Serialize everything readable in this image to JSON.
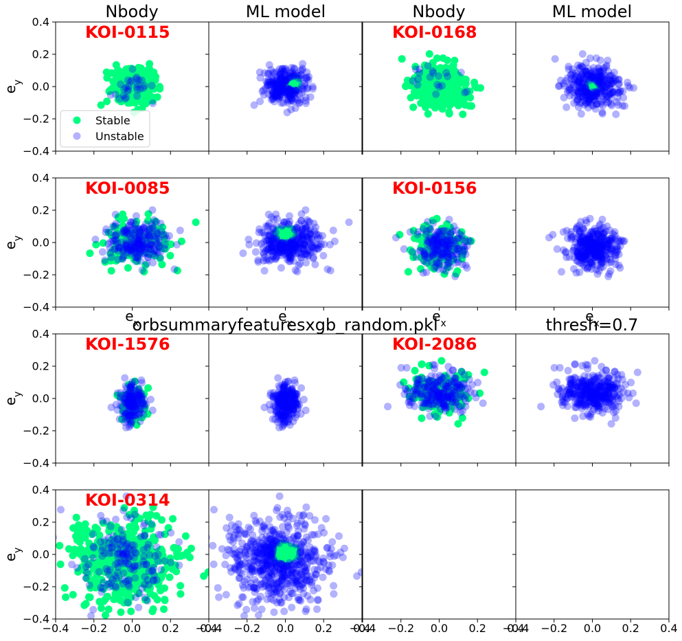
{
  "chart_data": {
    "type": "scatter",
    "xlim": [
      -0.4,
      0.4
    ],
    "ylim": [
      -0.4,
      0.4
    ],
    "xticks": [
      -0.4,
      -0.2,
      0.0,
      0.2,
      0.4
    ],
    "yticks": [
      -0.4,
      -0.2,
      0.0,
      0.2,
      0.4
    ],
    "xtick_labels": [
      "−0.4",
      "−0.2",
      "0.0",
      "0.2",
      "0.4"
    ],
    "ytick_labels": [
      "−0.4",
      "−0.2",
      "0.0",
      "0.2",
      "0.4"
    ],
    "column_titles": [
      "Nbody",
      "ML model",
      "Nbody",
      "ML model"
    ],
    "ylabel_main": "e",
    "ylabel_sub": "y",
    "xlabel_main": "e",
    "xlabel_sub": "x",
    "overlay_left": "orbsummaryfeaturesxgb_random.pkl",
    "overlay_right": "thresh=0.7",
    "legend": {
      "placement": "lower-left",
      "entries": [
        {
          "label": "Stable",
          "color": "#00ff7f"
        },
        {
          "label": "Unstable",
          "color": "#0000ff"
        }
      ]
    },
    "colors": {
      "stable": "#00ff7f",
      "unstable": "#0000ff",
      "label": "#ff0000"
    },
    "systems": [
      {
        "name": "KOI-0115",
        "cx": 0.0,
        "cy": 0.0,
        "sx": 0.055,
        "sy": 0.055,
        "stable_frac": 0.9,
        "ml_core_cx": 0.04,
        "ml_core_cy": 0.02,
        "ml_core_r": 0.04,
        "n": 320
      },
      {
        "name": "KOI-0168",
        "cx": 0.0,
        "cy": 0.0,
        "sx": 0.07,
        "sy": 0.065,
        "stable_frac": 0.95,
        "ml_core_cx": 0.0,
        "ml_core_cy": 0.0,
        "ml_core_r": 0.035,
        "n": 360
      },
      {
        "name": "KOI-0085",
        "cx": 0.02,
        "cy": 0.0,
        "sx": 0.085,
        "sy": 0.07,
        "stable_frac": 0.45,
        "ml_core_cx": 0.0,
        "ml_core_cy": 0.05,
        "ml_core_r": 0.05,
        "n": 380
      },
      {
        "name": "KOI-0156",
        "cx": 0.0,
        "cy": -0.03,
        "sx": 0.07,
        "sy": 0.07,
        "stable_frac": 0.5,
        "ml_core_cx": 0.0,
        "ml_core_cy": -0.03,
        "ml_core_r": 0.0,
        "n": 360
      },
      {
        "name": "KOI-1576",
        "cx": 0.0,
        "cy": -0.03,
        "sx": 0.035,
        "sy": 0.06,
        "stable_frac": 0.35,
        "ml_core_cx": 0.0,
        "ml_core_cy": 0.0,
        "ml_core_r": 0.0,
        "n": 260
      },
      {
        "name": "KOI-2086",
        "cx": 0.0,
        "cy": 0.04,
        "sx": 0.08,
        "sy": 0.06,
        "stable_frac": 0.4,
        "ml_core_cx": 0.0,
        "ml_core_cy": 0.04,
        "ml_core_r": 0.0,
        "n": 380
      },
      {
        "name": "KOI-0314",
        "cx": -0.04,
        "cy": -0.04,
        "sx": 0.13,
        "sy": 0.13,
        "stable_frac": 0.75,
        "ml_core_cx": 0.0,
        "ml_core_cy": 0.01,
        "ml_core_r": 0.065,
        "n": 650
      }
    ]
  }
}
